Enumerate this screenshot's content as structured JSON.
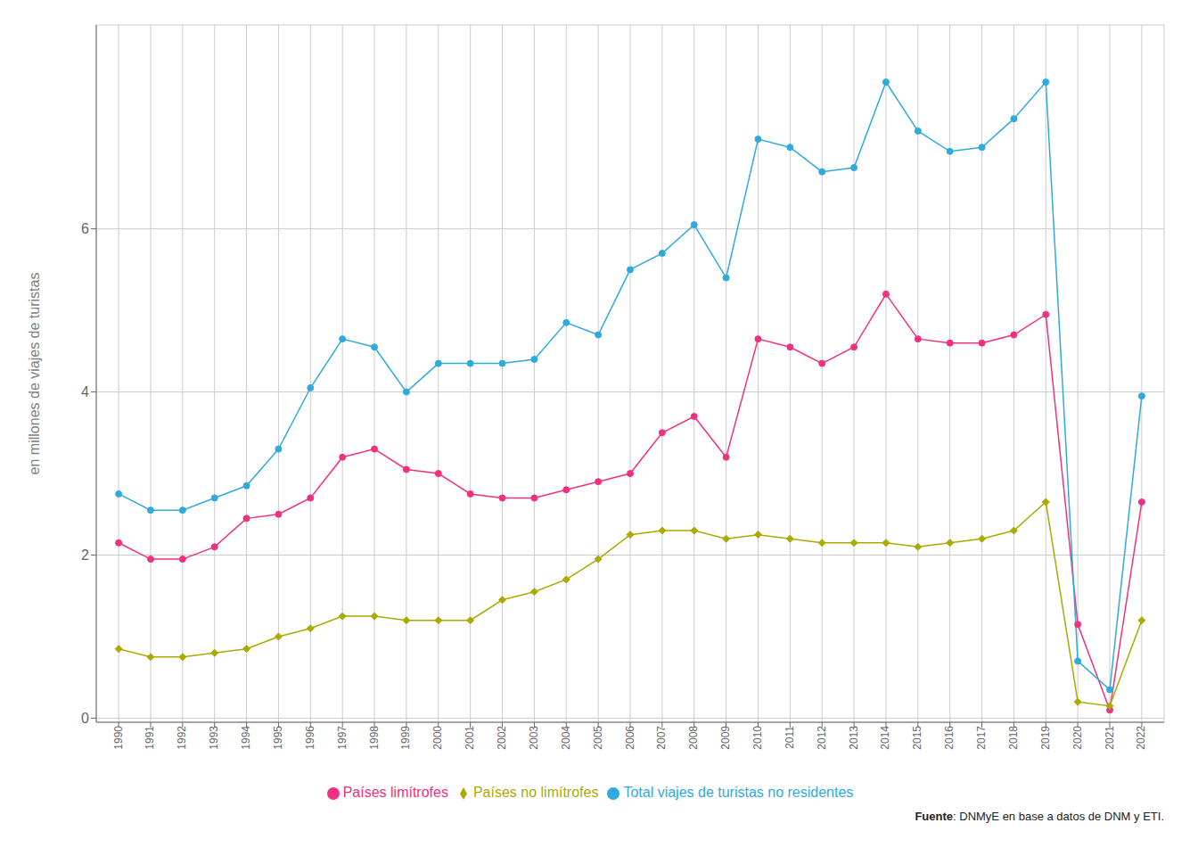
{
  "chart_data": {
    "type": "line",
    "x": [
      1990,
      1991,
      1992,
      1993,
      1994,
      1995,
      1996,
      1997,
      1998,
      1999,
      2000,
      2001,
      2002,
      2003,
      2004,
      2005,
      2006,
      2007,
      2008,
      2009,
      2010,
      2011,
      2012,
      2013,
      2014,
      2015,
      2016,
      2017,
      2018,
      2019,
      2020,
      2021,
      2022
    ],
    "series": [
      {
        "name": "Países limítrofes",
        "color": "#F03080",
        "marker": "circle",
        "values": [
          2.15,
          1.95,
          1.95,
          2.1,
          2.45,
          2.5,
          2.7,
          3.2,
          3.3,
          3.05,
          3.0,
          2.75,
          2.7,
          2.7,
          2.8,
          2.9,
          3.0,
          3.5,
          3.7,
          3.2,
          4.65,
          4.55,
          4.35,
          4.55,
          5.2,
          4.65,
          4.6,
          4.6,
          4.7,
          4.95,
          1.15,
          0.1,
          2.65
        ]
      },
      {
        "name": "Países no limítrofes",
        "color": "#AAAA00",
        "marker": "diamond",
        "values": [
          0.85,
          0.75,
          0.75,
          0.8,
          0.85,
          1.0,
          1.1,
          1.25,
          1.25,
          1.2,
          1.2,
          1.2,
          1.45,
          1.55,
          1.7,
          1.95,
          2.25,
          2.3,
          2.3,
          2.2,
          2.25,
          2.2,
          2.15,
          2.15,
          2.15,
          2.1,
          2.15,
          2.2,
          2.3,
          2.65,
          0.2,
          0.15,
          1.2
        ]
      },
      {
        "name": "Total viajes de turistas no residentes",
        "color": "#30AADD",
        "marker": "circle",
        "values": [
          2.75,
          2.55,
          2.55,
          2.7,
          2.85,
          3.3,
          4.05,
          4.65,
          4.55,
          4.0,
          4.35,
          4.35,
          4.35,
          4.4,
          4.85,
          4.7,
          5.5,
          5.7,
          6.05,
          5.4,
          7.1,
          7.0,
          6.7,
          6.75,
          7.8,
          7.2,
          6.95,
          7.0,
          7.35,
          7.8,
          0.7,
          0.35,
          3.95
        ]
      }
    ],
    "xlim": [
      1989.3,
      2022.7
    ],
    "xticks": [
      1990,
      1991,
      1992,
      1993,
      1994,
      1995,
      1996,
      1997,
      1998,
      1999,
      2000,
      2001,
      2002,
      2003,
      2004,
      2005,
      2006,
      2007,
      2008,
      2009,
      2010,
      2011,
      2012,
      2013,
      2014,
      2015,
      2016,
      2017,
      2018,
      2019,
      2020,
      2021,
      2022
    ],
    "ylim": [
      -0.05,
      8.5
    ],
    "yticks": [
      0,
      2,
      4,
      6
    ],
    "y_label": "en millones de viajes de turistas",
    "grid": true,
    "legend": "bottom",
    "annotations": [
      "Fuente: DNMyE en base a datos de DNM y ETI."
    ]
  }
}
